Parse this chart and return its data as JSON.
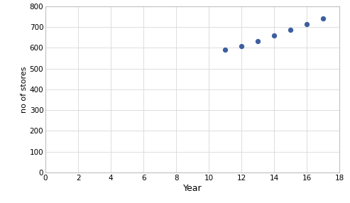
{
  "x": [
    11,
    12,
    13,
    14,
    15,
    16,
    17
  ],
  "y": [
    590,
    607,
    630,
    660,
    685,
    713,
    740
  ],
  "xlabel": "Year",
  "ylabel": "no of stores",
  "xlim": [
    0,
    18
  ],
  "ylim": [
    0,
    800
  ],
  "xticks": [
    0,
    2,
    4,
    6,
    8,
    10,
    12,
    14,
    16,
    18
  ],
  "yticks": [
    0,
    100,
    200,
    300,
    400,
    500,
    600,
    700,
    800
  ],
  "dot_color": "#3C5FA0",
  "dot_size": 18,
  "background_color": "#ffffff",
  "grid_color": "#d8d8d8",
  "spine_color": "#c0c0c0",
  "tick_label_fontsize": 7.5,
  "xlabel_fontsize": 9,
  "ylabel_fontsize": 8
}
